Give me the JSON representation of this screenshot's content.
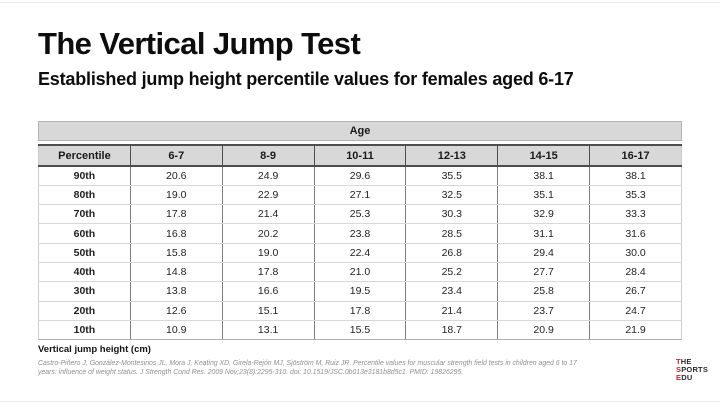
{
  "slide": {
    "title": "The Vertical Jump Test",
    "subtitle": "Established jump height percentile values for females aged 6-17"
  },
  "table": {
    "age_header": "Age",
    "columns": [
      "Percentile",
      "6-7",
      "8-9",
      "10-11",
      "12-13",
      "14-15",
      "16-17"
    ],
    "rows": [
      {
        "percentile": "90th",
        "values": [
          "20.6",
          "24.9",
          "29.6",
          "35.5",
          "38.1",
          "38.1"
        ]
      },
      {
        "percentile": "80th",
        "values": [
          "19.0",
          "22.9",
          "27.1",
          "32.5",
          "35.1",
          "35.3"
        ]
      },
      {
        "percentile": "70th",
        "values": [
          "17.8",
          "21.4",
          "25.3",
          "30.3",
          "32.9",
          "33.3"
        ]
      },
      {
        "percentile": "60th",
        "values": [
          "16.8",
          "20.2",
          "23.8",
          "28.5",
          "31.1",
          "31.6"
        ]
      },
      {
        "percentile": "50th",
        "values": [
          "15.8",
          "19.0",
          "22.4",
          "26.8",
          "29.4",
          "30.0"
        ]
      },
      {
        "percentile": "40th",
        "values": [
          "14.8",
          "17.8",
          "21.0",
          "25.2",
          "27.7",
          "28.4"
        ]
      },
      {
        "percentile": "30th",
        "values": [
          "13.8",
          "16.6",
          "19.5",
          "23.4",
          "25.8",
          "26.7"
        ]
      },
      {
        "percentile": "20th",
        "values": [
          "12.6",
          "15.1",
          "17.8",
          "21.4",
          "23.7",
          "24.7"
        ]
      },
      {
        "percentile": "10th",
        "values": [
          "10.9",
          "13.1",
          "15.5",
          "18.7",
          "20.9",
          "21.9"
        ]
      }
    ],
    "caption": "Vertical jump height (cm)"
  },
  "citation": {
    "line1": "Castro-Piñero J, González-Montesinos JL, Mora J, Keating XD, Girela-Rejón MJ, Sjöström M, Ruiz JR. Percentile values for muscular strength field tests in children aged 6 to 17",
    "line2": "years: influence of weight status. J Strength Cond Res. 2009 Nov;23(8):2295-310. doi: 10.1519/JSC.0b013e3181b8d5c1. PMID: 19826295."
  },
  "logo": {
    "accent_color": "#c0262c",
    "lines": [
      {
        "accent": "T",
        "rest": "HE"
      },
      {
        "accent": "S",
        "rest": "PORTS"
      },
      {
        "accent": "E",
        "rest": "DU"
      }
    ]
  }
}
